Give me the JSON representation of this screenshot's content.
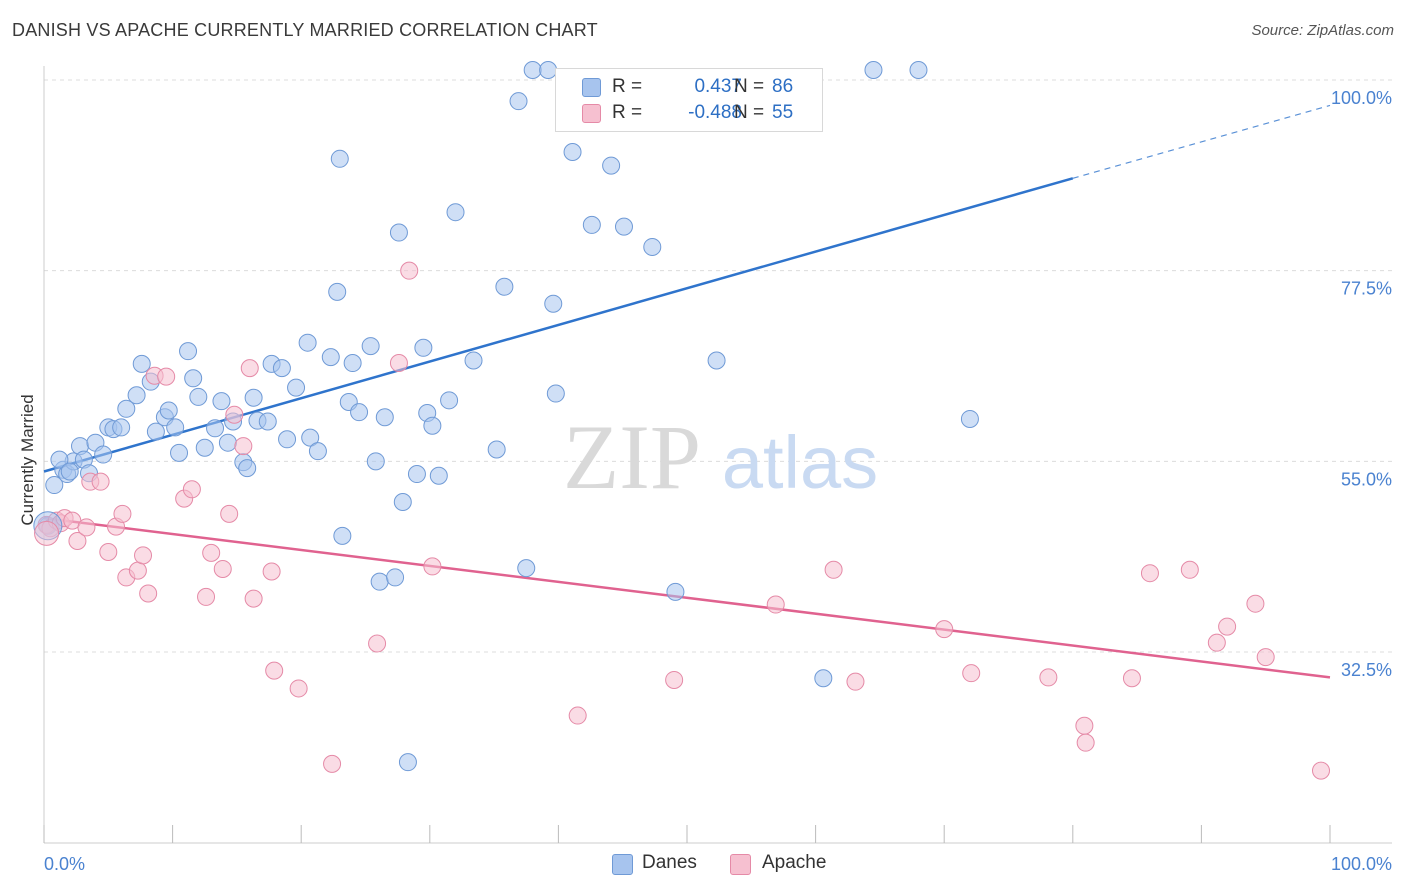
{
  "title": "DANISH VS APACHE CURRENTLY MARRIED CORRELATION CHART",
  "source": "Source: ZipAtlas.com",
  "watermark": {
    "zip": "ZIP",
    "atlas": "atlas"
  },
  "legend": {
    "rows": [
      {
        "r_label": "R =",
        "r_value": "0.437",
        "n_label": "N =",
        "n_value": "86",
        "color": "#a7c4ee",
        "border": "#6f9ad6"
      },
      {
        "r_label": "R =",
        "r_value": "-0.488",
        "n_label": "N =",
        "n_value": "55",
        "color": "#f6c0d0",
        "border": "#e58aa7"
      }
    ]
  },
  "bottom_legend": [
    {
      "label": "Danes",
      "color": "#a7c4ee",
      "border": "#6f9ad6"
    },
    {
      "label": "Apache",
      "color": "#f6c0d0",
      "border": "#e58aa7"
    }
  ],
  "chart_data": {
    "type": "scatter",
    "title": "DANISH VS APACHE CURRENTLY MARRIED CORRELATION CHART",
    "xlabel": "",
    "ylabel": "Currently Married",
    "xlim": [
      0,
      100
    ],
    "ylim": [
      10,
      100
    ],
    "x_tick_labels": [
      "0.0%",
      "100.0%"
    ],
    "y_ticks": [
      32.5,
      55.0,
      77.5,
      100.0
    ],
    "y_tick_labels": [
      "32.5%",
      "55.0%",
      "77.5%",
      "100.0%"
    ],
    "grid": "horizontal dashed",
    "legend_position": "top-center",
    "series": [
      {
        "name": "Danes",
        "color": "#6f9ad6",
        "fill": "#a7c4ee",
        "trend": {
          "x": [
            0,
            80
          ],
          "y": [
            53.8,
            88.4
          ],
          "dashed_extension": {
            "x": [
              80,
              100
            ],
            "y": [
              88.4,
              97.0
            ]
          },
          "color": "#2f74cc"
        },
        "points": [
          [
            0.3,
            47.4
          ],
          [
            0.8,
            52.2
          ],
          [
            1.5,
            54.0
          ],
          [
            1.8,
            53.5
          ],
          [
            2.3,
            55.0
          ],
          [
            2.8,
            56.8
          ],
          [
            3.1,
            55.2
          ],
          [
            3.5,
            53.6
          ],
          [
            4.0,
            57.2
          ],
          [
            4.6,
            55.8
          ],
          [
            5.0,
            59.0
          ],
          [
            5.4,
            58.8
          ],
          [
            6.0,
            59.0
          ],
          [
            6.4,
            61.2
          ],
          [
            7.2,
            62.8
          ],
          [
            7.6,
            66.5
          ],
          [
            8.3,
            64.4
          ],
          [
            8.7,
            58.5
          ],
          [
            9.4,
            60.2
          ],
          [
            9.7,
            61.0
          ],
          [
            10.2,
            59.0
          ],
          [
            10.5,
            56.0
          ],
          [
            11.2,
            68.0
          ],
          [
            11.6,
            64.8
          ],
          [
            12.0,
            62.6
          ],
          [
            12.5,
            56.6
          ],
          [
            13.3,
            58.9
          ],
          [
            13.8,
            62.1
          ],
          [
            14.3,
            57.2
          ],
          [
            14.7,
            59.7
          ],
          [
            15.5,
            54.9
          ],
          [
            15.8,
            54.2
          ],
          [
            16.3,
            62.5
          ],
          [
            16.6,
            59.8
          ],
          [
            17.4,
            59.7
          ],
          [
            17.7,
            66.5
          ],
          [
            18.5,
            66.0
          ],
          [
            18.9,
            57.6
          ],
          [
            19.6,
            63.7
          ],
          [
            20.5,
            69.0
          ],
          [
            20.7,
            57.8
          ],
          [
            21.3,
            56.2
          ],
          [
            22.3,
            67.3
          ],
          [
            22.8,
            75.0
          ],
          [
            23.0,
            90.7
          ],
          [
            23.2,
            46.2
          ],
          [
            23.7,
            62.0
          ],
          [
            24.0,
            66.6
          ],
          [
            24.5,
            60.8
          ],
          [
            25.4,
            68.6
          ],
          [
            25.8,
            55.0
          ],
          [
            26.1,
            40.8
          ],
          [
            26.5,
            60.2
          ],
          [
            27.3,
            41.3
          ],
          [
            27.6,
            82.0
          ],
          [
            27.9,
            50.2
          ],
          [
            28.3,
            19.5
          ],
          [
            29.0,
            53.5
          ],
          [
            29.5,
            68.4
          ],
          [
            29.8,
            60.7
          ],
          [
            30.2,
            59.2
          ],
          [
            30.7,
            53.3
          ],
          [
            31.5,
            62.2
          ],
          [
            32.0,
            84.4
          ],
          [
            33.4,
            66.9
          ],
          [
            35.2,
            56.4
          ],
          [
            35.8,
            75.6
          ],
          [
            36.9,
            97.5
          ],
          [
            37.5,
            42.4
          ],
          [
            38.0,
            103.0
          ],
          [
            39.2,
            103.0
          ],
          [
            39.6,
            73.6
          ],
          [
            39.8,
            63.0
          ],
          [
            41.1,
            91.5
          ],
          [
            42.6,
            82.9
          ],
          [
            44.1,
            89.9
          ],
          [
            45.1,
            82.7
          ],
          [
            47.3,
            80.3
          ],
          [
            49.1,
            39.6
          ],
          [
            52.3,
            66.9
          ],
          [
            60.6,
            29.4
          ],
          [
            64.5,
            103.0
          ],
          [
            68.0,
            103.0
          ],
          [
            72.0,
            60.0
          ],
          [
            1.2,
            55.2
          ],
          [
            2.0,
            53.8
          ]
        ]
      },
      {
        "name": "Apache",
        "color": "#e58aa7",
        "fill": "#f6c0d0",
        "trend": {
          "x": [
            0,
            100
          ],
          "y": [
            48.3,
            29.5
          ],
          "color": "#e0628f"
        },
        "points": [
          [
            0.2,
            47.5
          ],
          [
            0.5,
            47.1
          ],
          [
            1.0,
            48.0
          ],
          [
            1.3,
            47.7
          ],
          [
            1.6,
            48.3
          ],
          [
            2.2,
            48.0
          ],
          [
            2.6,
            45.6
          ],
          [
            3.3,
            47.2
          ],
          [
            3.6,
            52.6
          ],
          [
            4.4,
            52.6
          ],
          [
            5.0,
            44.3
          ],
          [
            5.6,
            47.3
          ],
          [
            6.1,
            48.8
          ],
          [
            6.4,
            41.3
          ],
          [
            7.3,
            42.1
          ],
          [
            7.7,
            43.9
          ],
          [
            8.1,
            39.4
          ],
          [
            8.6,
            65.1
          ],
          [
            9.5,
            65.0
          ],
          [
            10.9,
            50.6
          ],
          [
            11.5,
            51.7
          ],
          [
            12.6,
            39.0
          ],
          [
            13.0,
            44.2
          ],
          [
            13.9,
            42.3
          ],
          [
            14.4,
            48.8
          ],
          [
            14.8,
            60.5
          ],
          [
            15.5,
            56.8
          ],
          [
            16.0,
            66.0
          ],
          [
            16.3,
            38.8
          ],
          [
            17.7,
            42.0
          ],
          [
            17.9,
            30.3
          ],
          [
            19.8,
            28.2
          ],
          [
            22.4,
            19.3
          ],
          [
            25.9,
            33.5
          ],
          [
            27.6,
            66.6
          ],
          [
            28.4,
            77.5
          ],
          [
            30.2,
            42.6
          ],
          [
            41.5,
            25.0
          ],
          [
            49.0,
            29.2
          ],
          [
            56.9,
            38.1
          ],
          [
            61.4,
            42.2
          ],
          [
            63.1,
            29.0
          ],
          [
            70.0,
            35.2
          ],
          [
            72.1,
            30.0
          ],
          [
            78.1,
            29.5
          ],
          [
            80.9,
            23.8
          ],
          [
            81.0,
            21.8
          ],
          [
            84.6,
            29.4
          ],
          [
            86.0,
            41.8
          ],
          [
            89.1,
            42.2
          ],
          [
            91.2,
            33.6
          ],
          [
            92.0,
            35.5
          ],
          [
            94.2,
            38.2
          ],
          [
            95.0,
            31.9
          ],
          [
            99.3,
            18.5
          ]
        ]
      }
    ]
  }
}
